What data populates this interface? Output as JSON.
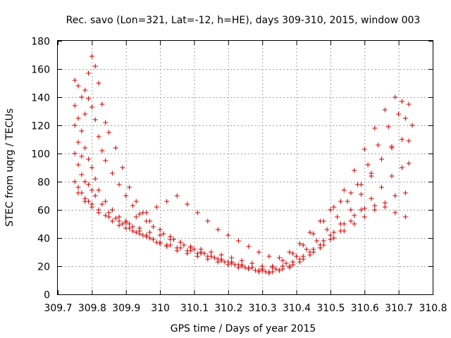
{
  "chart_data": {
    "type": "scatter",
    "title": "Rec. savo (Lon=321, Lat=-12, h=HE), days 309-310, 2015, window 003",
    "xlabel": "GPS time / Days of year 2015",
    "ylabel": "STEC from uqrg / TECUs",
    "xlim": [
      309.7,
      310.8
    ],
    "ylim": [
      0,
      180
    ],
    "xticks": [
      "309.7",
      "309.8",
      "309.9",
      "310",
      "310.1",
      "310.2",
      "310.3",
      "310.4",
      "310.5",
      "310.6",
      "310.7",
      "310.8"
    ],
    "yticks": [
      "0",
      "20",
      "40",
      "60",
      "80",
      "100",
      "120",
      "140",
      "160",
      "180"
    ],
    "grid": true,
    "marker": "+",
    "color": "#cc0000",
    "series": [
      {
        "x": [
          309.75,
          309.76,
          309.77,
          309.78,
          309.79,
          309.8,
          309.81,
          309.82,
          309.83,
          309.84,
          309.85,
          309.87,
          309.89,
          309.91,
          309.93,
          309.95,
          309.97,
          310.0,
          310.03,
          310.06,
          310.09,
          310.12,
          310.15,
          310.18,
          310.21,
          310.24,
          310.27,
          310.3,
          310.33,
          310.36,
          310.39,
          310.42,
          310.45,
          310.48,
          310.51,
          310.54,
          310.57,
          310.6,
          310.63,
          310.66,
          310.69,
          310.71,
          310.73
        ],
        "y": [
          152,
          148,
          140,
          145,
          157,
          169,
          162,
          150,
          135,
          122,
          115,
          104,
          90,
          76,
          66,
          58,
          52,
          46,
          41,
          37,
          33,
          30,
          27,
          24,
          22,
          20,
          19,
          18,
          20,
          24,
          29,
          35,
          43,
          52,
          62,
          74,
          88,
          103,
          118,
          131,
          140,
          137,
          135
        ]
      },
      {
        "x": [
          309.75,
          309.76,
          309.77,
          309.78,
          309.79,
          309.8,
          309.81,
          309.82,
          309.83,
          309.84,
          309.86,
          309.88,
          309.9,
          309.92,
          309.94,
          309.96,
          309.98,
          310.01,
          310.04,
          310.07,
          310.1,
          310.13,
          310.16,
          310.19,
          310.22,
          310.25,
          310.28,
          310.31,
          310.34,
          310.37,
          310.4,
          310.43,
          310.46,
          310.49,
          310.52,
          310.55,
          310.58,
          310.61,
          310.64,
          310.67,
          310.7,
          310.72,
          310.74
        ],
        "y": [
          134,
          125,
          116,
          128,
          139,
          133,
          124,
          112,
          102,
          95,
          86,
          78,
          70,
          63,
          57,
          52,
          48,
          43,
          39,
          35,
          32,
          29,
          26,
          23,
          21,
          19,
          17,
          16,
          18,
          22,
          27,
          32,
          38,
          46,
          55,
          66,
          78,
          92,
          106,
          119,
          128,
          125,
          120
        ]
      },
      {
        "x": [
          309.75,
          309.76,
          309.77,
          309.78,
          309.79,
          309.8,
          309.81,
          309.82,
          309.84,
          309.86,
          309.88,
          309.9,
          309.92,
          309.94,
          309.96,
          309.98,
          310.0,
          310.02,
          310.05,
          310.08,
          310.11,
          310.14,
          310.17,
          310.2,
          310.23,
          310.26,
          310.29,
          310.32,
          310.35,
          310.38,
          310.41,
          310.44,
          310.47,
          310.5,
          310.53,
          310.56,
          310.59,
          310.62,
          310.65,
          310.68,
          310.71,
          310.73
        ],
        "y": [
          120,
          108,
          98,
          104,
          96,
          90,
          82,
          74,
          66,
          60,
          55,
          51,
          48,
          45,
          42,
          39,
          36,
          34,
          31,
          29,
          27,
          25,
          23,
          21,
          19,
          18,
          16,
          15,
          17,
          20,
          25,
          30,
          35,
          42,
          50,
          60,
          71,
          84,
          96,
          105,
          110,
          109
        ]
      },
      {
        "x": [
          309.75,
          309.76,
          309.77,
          309.78,
          309.79,
          309.8,
          309.81,
          309.83,
          309.85,
          309.87,
          309.89,
          309.91,
          309.93,
          309.95,
          309.97,
          309.99,
          310.02,
          310.05,
          310.08,
          310.11,
          310.14,
          310.17,
          310.2,
          310.23,
          310.26,
          310.29,
          310.32,
          310.35,
          310.38,
          310.41,
          310.44,
          310.47,
          310.5,
          310.53,
          310.56,
          310.59,
          310.62,
          310.65,
          310.68,
          310.71,
          310.73
        ],
        "y": [
          100,
          92,
          85,
          80,
          78,
          74,
          70,
          64,
          58,
          54,
          50,
          47,
          44,
          42,
          40,
          37,
          35,
          33,
          31,
          29,
          27,
          25,
          23,
          21,
          19,
          17,
          16,
          17,
          19,
          23,
          28,
          33,
          39,
          45,
          52,
          60,
          68,
          76,
          84,
          90,
          93
        ]
      },
      {
        "x": [
          309.75,
          309.76,
          309.77,
          309.78,
          309.79,
          309.8,
          309.82,
          309.84,
          309.86,
          309.88,
          309.9,
          309.92,
          309.94,
          309.96,
          309.98,
          310.0,
          310.03,
          310.06,
          310.09,
          310.12,
          310.15,
          310.18,
          310.21,
          310.24,
          310.27,
          310.3,
          310.33,
          310.36,
          310.39,
          310.42,
          310.45,
          310.48,
          310.51,
          310.54,
          310.57,
          310.6,
          310.63,
          310.66,
          310.69,
          310.72
        ],
        "y": [
          80,
          76,
          72,
          68,
          66,
          64,
          60,
          56,
          52,
          49,
          47,
          45,
          43,
          41,
          39,
          37,
          35,
          33,
          31,
          29,
          27,
          25,
          23,
          21,
          19,
          17,
          16,
          18,
          21,
          25,
          30,
          35,
          40,
          45,
          50,
          55,
          60,
          65,
          70,
          72
        ]
      },
      {
        "x": [
          309.76,
          309.78,
          309.8,
          309.82,
          309.85,
          309.88,
          309.91,
          309.94,
          309.97,
          310.0,
          310.03,
          310.06,
          310.09,
          310.12,
          310.15,
          310.18,
          310.21,
          310.24,
          310.27,
          310.3,
          310.33,
          310.36,
          310.39,
          310.42,
          310.45,
          310.48,
          310.51,
          310.54,
          310.57,
          310.6,
          310.63,
          310.66,
          310.69,
          310.72
        ],
        "y": [
          72,
          66,
          62,
          58,
          55,
          52,
          50,
          47,
          44,
          42,
          39,
          37,
          34,
          32,
          30,
          28,
          26,
          24,
          22,
          20,
          19,
          20,
          23,
          27,
          32,
          38,
          44,
          50,
          56,
          61,
          63,
          62,
          58,
          55
        ]
      },
      {
        "x": [
          309.9,
          309.93,
          309.96,
          309.99,
          310.02,
          310.05,
          310.08,
          310.11,
          310.14,
          310.17,
          310.2,
          310.23,
          310.26,
          310.29,
          310.32,
          310.35,
          310.38,
          310.41,
          310.44,
          310.47,
          310.5,
          310.53,
          310.56,
          310.59,
          310.62,
          310.65,
          310.68
        ],
        "y": [
          52,
          55,
          58,
          62,
          66,
          70,
          64,
          58,
          52,
          46,
          42,
          38,
          34,
          30,
          27,
          26,
          30,
          36,
          44,
          52,
          60,
          66,
          72,
          78,
          86,
          96,
          104
        ]
      }
    ]
  }
}
